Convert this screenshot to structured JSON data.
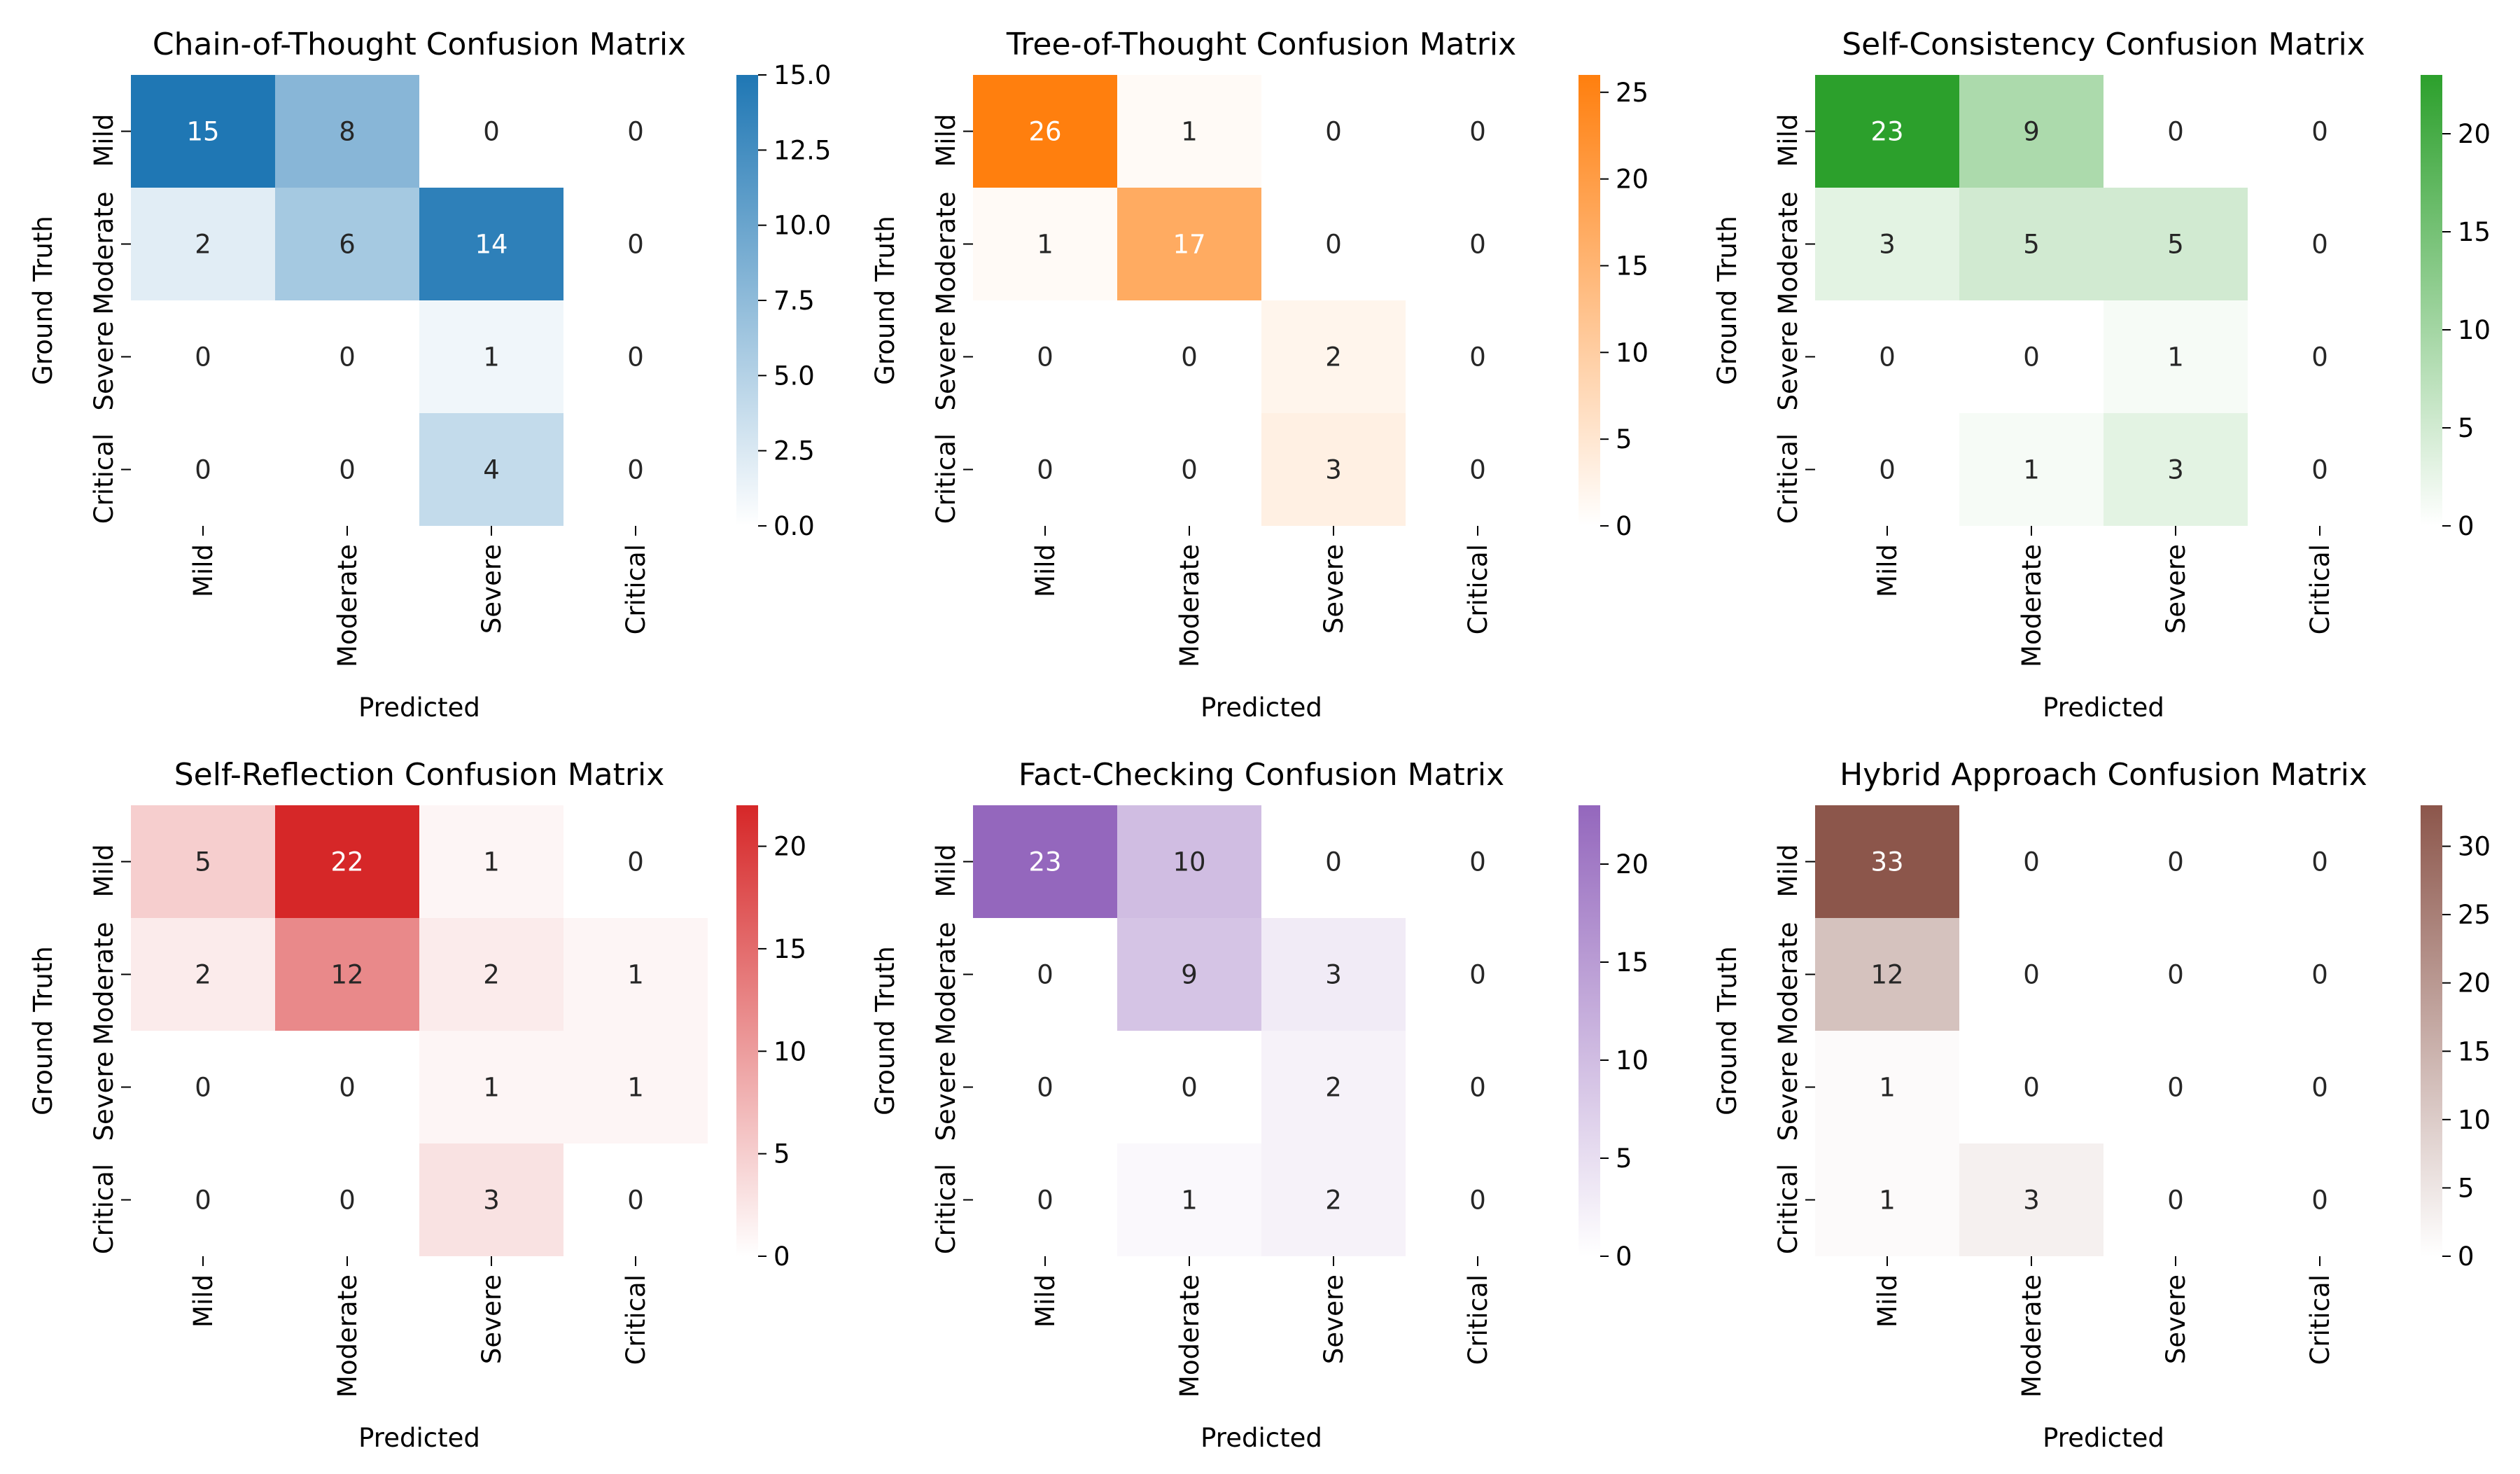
{
  "chart_data": [
    {
      "type": "heatmap",
      "title": "Chain-of-Thought Confusion Matrix",
      "xlabel": "Predicted",
      "ylabel": "Ground Truth",
      "x_categories": [
        "Mild",
        "Moderate",
        "Severe",
        "Critical"
      ],
      "y_categories": [
        "Mild",
        "Moderate",
        "Severe",
        "Critical"
      ],
      "values": [
        [
          15,
          8,
          0,
          0
        ],
        [
          2,
          6,
          14,
          0
        ],
        [
          0,
          0,
          1,
          0
        ],
        [
          0,
          0,
          4,
          0
        ]
      ],
      "colorbar": {
        "min": 0,
        "max": 15,
        "ticks": [
          "0.0",
          "2.5",
          "5.0",
          "7.5",
          "10.0",
          "12.5",
          "15.0"
        ],
        "tick_values": [
          0,
          2.5,
          5,
          7.5,
          10,
          12.5,
          15
        ]
      },
      "color_high": "#1f77b4",
      "color_low": "#ffffff",
      "zero_cells_blank": true
    },
    {
      "type": "heatmap",
      "title": "Tree-of-Thought Confusion Matrix",
      "xlabel": "Predicted",
      "ylabel": "Ground Truth",
      "x_categories": [
        "Mild",
        "Moderate",
        "Severe",
        "Critical"
      ],
      "y_categories": [
        "Mild",
        "Moderate",
        "Severe",
        "Critical"
      ],
      "values": [
        [
          26,
          1,
          0,
          0
        ],
        [
          1,
          17,
          0,
          0
        ],
        [
          0,
          0,
          2,
          0
        ],
        [
          0,
          0,
          3,
          0
        ]
      ],
      "colorbar": {
        "min": 0,
        "max": 26,
        "ticks": [
          "0",
          "5",
          "10",
          "15",
          "20",
          "25"
        ],
        "tick_values": [
          0,
          5,
          10,
          15,
          20,
          25
        ]
      },
      "color_high": "#ff7f0e",
      "color_low": "#ffffff",
      "zero_cells_blank": true
    },
    {
      "type": "heatmap",
      "title": "Self-Consistency Confusion Matrix",
      "xlabel": "Predicted",
      "ylabel": "Ground Truth",
      "x_categories": [
        "Mild",
        "Moderate",
        "Severe",
        "Critical"
      ],
      "y_categories": [
        "Mild",
        "Moderate",
        "Severe",
        "Critical"
      ],
      "values": [
        [
          23,
          9,
          0,
          0
        ],
        [
          3,
          5,
          5,
          0
        ],
        [
          0,
          0,
          1,
          0
        ],
        [
          0,
          1,
          3,
          0
        ]
      ],
      "colorbar": {
        "min": 0,
        "max": 23,
        "ticks": [
          "0",
          "5",
          "10",
          "15",
          "20"
        ],
        "tick_values": [
          0,
          5,
          10,
          15,
          20
        ]
      },
      "color_high": "#2ca02c",
      "color_low": "#ffffff",
      "zero_cells_blank": true
    },
    {
      "type": "heatmap",
      "title": "Self-Reflection Confusion Matrix",
      "xlabel": "Predicted",
      "ylabel": "Ground Truth",
      "x_categories": [
        "Mild",
        "Moderate",
        "Severe",
        "Critical"
      ],
      "y_categories": [
        "Mild",
        "Moderate",
        "Severe",
        "Critical"
      ],
      "values": [
        [
          5,
          22,
          1,
          0
        ],
        [
          2,
          12,
          2,
          1
        ],
        [
          0,
          0,
          1,
          1
        ],
        [
          0,
          0,
          3,
          0
        ]
      ],
      "colorbar": {
        "min": 0,
        "max": 22,
        "ticks": [
          "0",
          "5",
          "10",
          "15",
          "20"
        ],
        "tick_values": [
          0,
          5,
          10,
          15,
          20
        ]
      },
      "color_high": "#d62728",
      "color_low": "#ffffff",
      "zero_cells_blank": true
    },
    {
      "type": "heatmap",
      "title": "Fact-Checking Confusion Matrix",
      "xlabel": "Predicted",
      "ylabel": "Ground Truth",
      "x_categories": [
        "Mild",
        "Moderate",
        "Severe",
        "Critical"
      ],
      "y_categories": [
        "Mild",
        "Moderate",
        "Severe",
        "Critical"
      ],
      "values": [
        [
          23,
          10,
          0,
          0
        ],
        [
          0,
          9,
          3,
          0
        ],
        [
          0,
          0,
          2,
          0
        ],
        [
          0,
          1,
          2,
          0
        ]
      ],
      "colorbar": {
        "min": 0,
        "max": 23,
        "ticks": [
          "0",
          "5",
          "10",
          "15",
          "20"
        ],
        "tick_values": [
          0,
          5,
          10,
          15,
          20
        ]
      },
      "color_high": "#9467bd",
      "color_low": "#ffffff",
      "zero_cells_blank": true
    },
    {
      "type": "heatmap",
      "title": "Hybrid Approach Confusion Matrix",
      "xlabel": "Predicted",
      "ylabel": "Ground Truth",
      "x_categories": [
        "Mild",
        "Moderate",
        "Severe",
        "Critical"
      ],
      "y_categories": [
        "Mild",
        "Moderate",
        "Severe",
        "Critical"
      ],
      "values": [
        [
          33,
          0,
          0,
          0
        ],
        [
          12,
          0,
          0,
          0
        ],
        [
          1,
          0,
          0,
          0
        ],
        [
          1,
          3,
          0,
          0
        ]
      ],
      "colorbar": {
        "min": 0,
        "max": 33,
        "ticks": [
          "0",
          "5",
          "10",
          "15",
          "20",
          "25",
          "30"
        ],
        "tick_values": [
          0,
          5,
          10,
          15,
          20,
          25,
          30
        ]
      },
      "color_high": "#8c564b",
      "color_low": "#ffffff",
      "zero_cells_blank": true
    }
  ]
}
